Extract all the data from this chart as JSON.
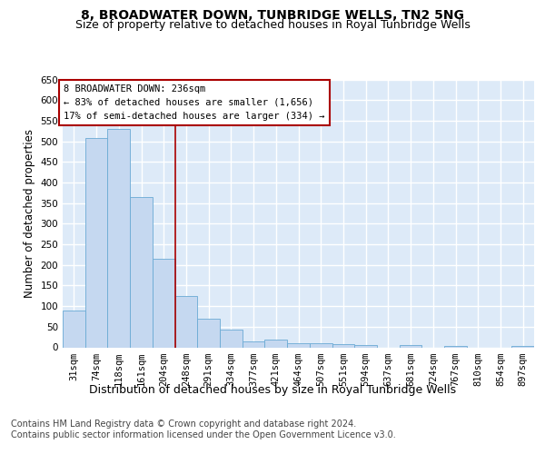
{
  "title": "8, BROADWATER DOWN, TUNBRIDGE WELLS, TN2 5NG",
  "subtitle": "Size of property relative to detached houses in Royal Tunbridge Wells",
  "xlabel": "Distribution of detached houses by size in Royal Tunbridge Wells",
  "ylabel": "Number of detached properties",
  "footnote1": "Contains HM Land Registry data © Crown copyright and database right 2024.",
  "footnote2": "Contains public sector information licensed under the Open Government Licence v3.0.",
  "bar_labels": [
    "31sqm",
    "74sqm",
    "118sqm",
    "161sqm",
    "204sqm",
    "248sqm",
    "291sqm",
    "334sqm",
    "377sqm",
    "421sqm",
    "464sqm",
    "507sqm",
    "551sqm",
    "594sqm",
    "637sqm",
    "681sqm",
    "724sqm",
    "767sqm",
    "810sqm",
    "854sqm",
    "897sqm"
  ],
  "bar_values": [
    90,
    507,
    530,
    365,
    215,
    125,
    70,
    43,
    15,
    19,
    10,
    10,
    7,
    5,
    0,
    5,
    0,
    4,
    0,
    0,
    4
  ],
  "bar_color": "#c5d8f0",
  "bar_edge_color": "#6aaad4",
  "plot_bg_color": "#ddeaf8",
  "fig_bg_color": "#ffffff",
  "grid_color": "#ffffff",
  "annotation_text": "8 BROADWATER DOWN: 236sqm\n← 83% of detached houses are smaller (1,656)\n17% of semi-detached houses are larger (334) →",
  "annotation_box_color": "#ffffff",
  "annotation_box_edge": "#aa0000",
  "vline_color": "#aa0000",
  "vline_x": 4.5,
  "ylim_max": 650,
  "ytick_step": 50,
  "title_fontsize": 10,
  "subtitle_fontsize": 9,
  "xlabel_fontsize": 9,
  "ylabel_fontsize": 8.5,
  "tick_fontsize": 7.5,
  "annotation_fontsize": 7.5,
  "footnote_fontsize": 7
}
